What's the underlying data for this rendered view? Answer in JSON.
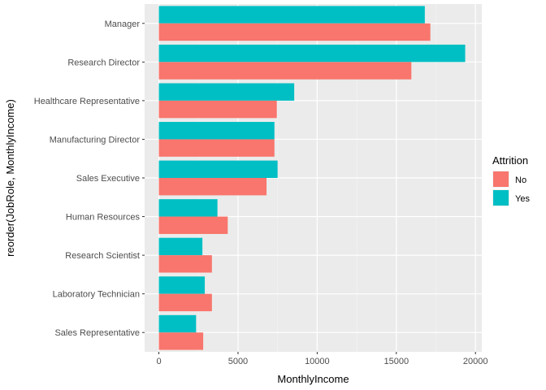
{
  "chart_data": {
    "type": "bar",
    "orientation": "horizontal",
    "xlabel": "MonthlyIncome",
    "ylabel": "reorder(JobRole, MonthlyIncome)",
    "xlim": [
      -900,
      20400
    ],
    "xticks": [
      0,
      5000,
      10000,
      15000,
      20000
    ],
    "xtick_labels": [
      "0",
      "5000",
      "10000",
      "15000",
      "20000"
    ],
    "grid": true,
    "categories": [
      "Manager",
      "Research Director",
      "Healthcare Representative",
      "Manufacturing Director",
      "Sales Executive",
      "Human Resources",
      "Research Scientist",
      "Laboratory Technician",
      "Sales Representative"
    ],
    "series": [
      {
        "name": "No",
        "color": "#F8766D",
        "values": [
          17150,
          15950,
          7450,
          7300,
          6800,
          4350,
          3350,
          3350,
          2800
        ]
      },
      {
        "name": "Yes",
        "color": "#00BFC4",
        "values": [
          16800,
          19350,
          8550,
          7300,
          7500,
          3700,
          2750,
          2900,
          2350
        ]
      }
    ],
    "legend": {
      "title": "Attrition",
      "position": "right",
      "items": [
        "No",
        "Yes"
      ]
    }
  }
}
